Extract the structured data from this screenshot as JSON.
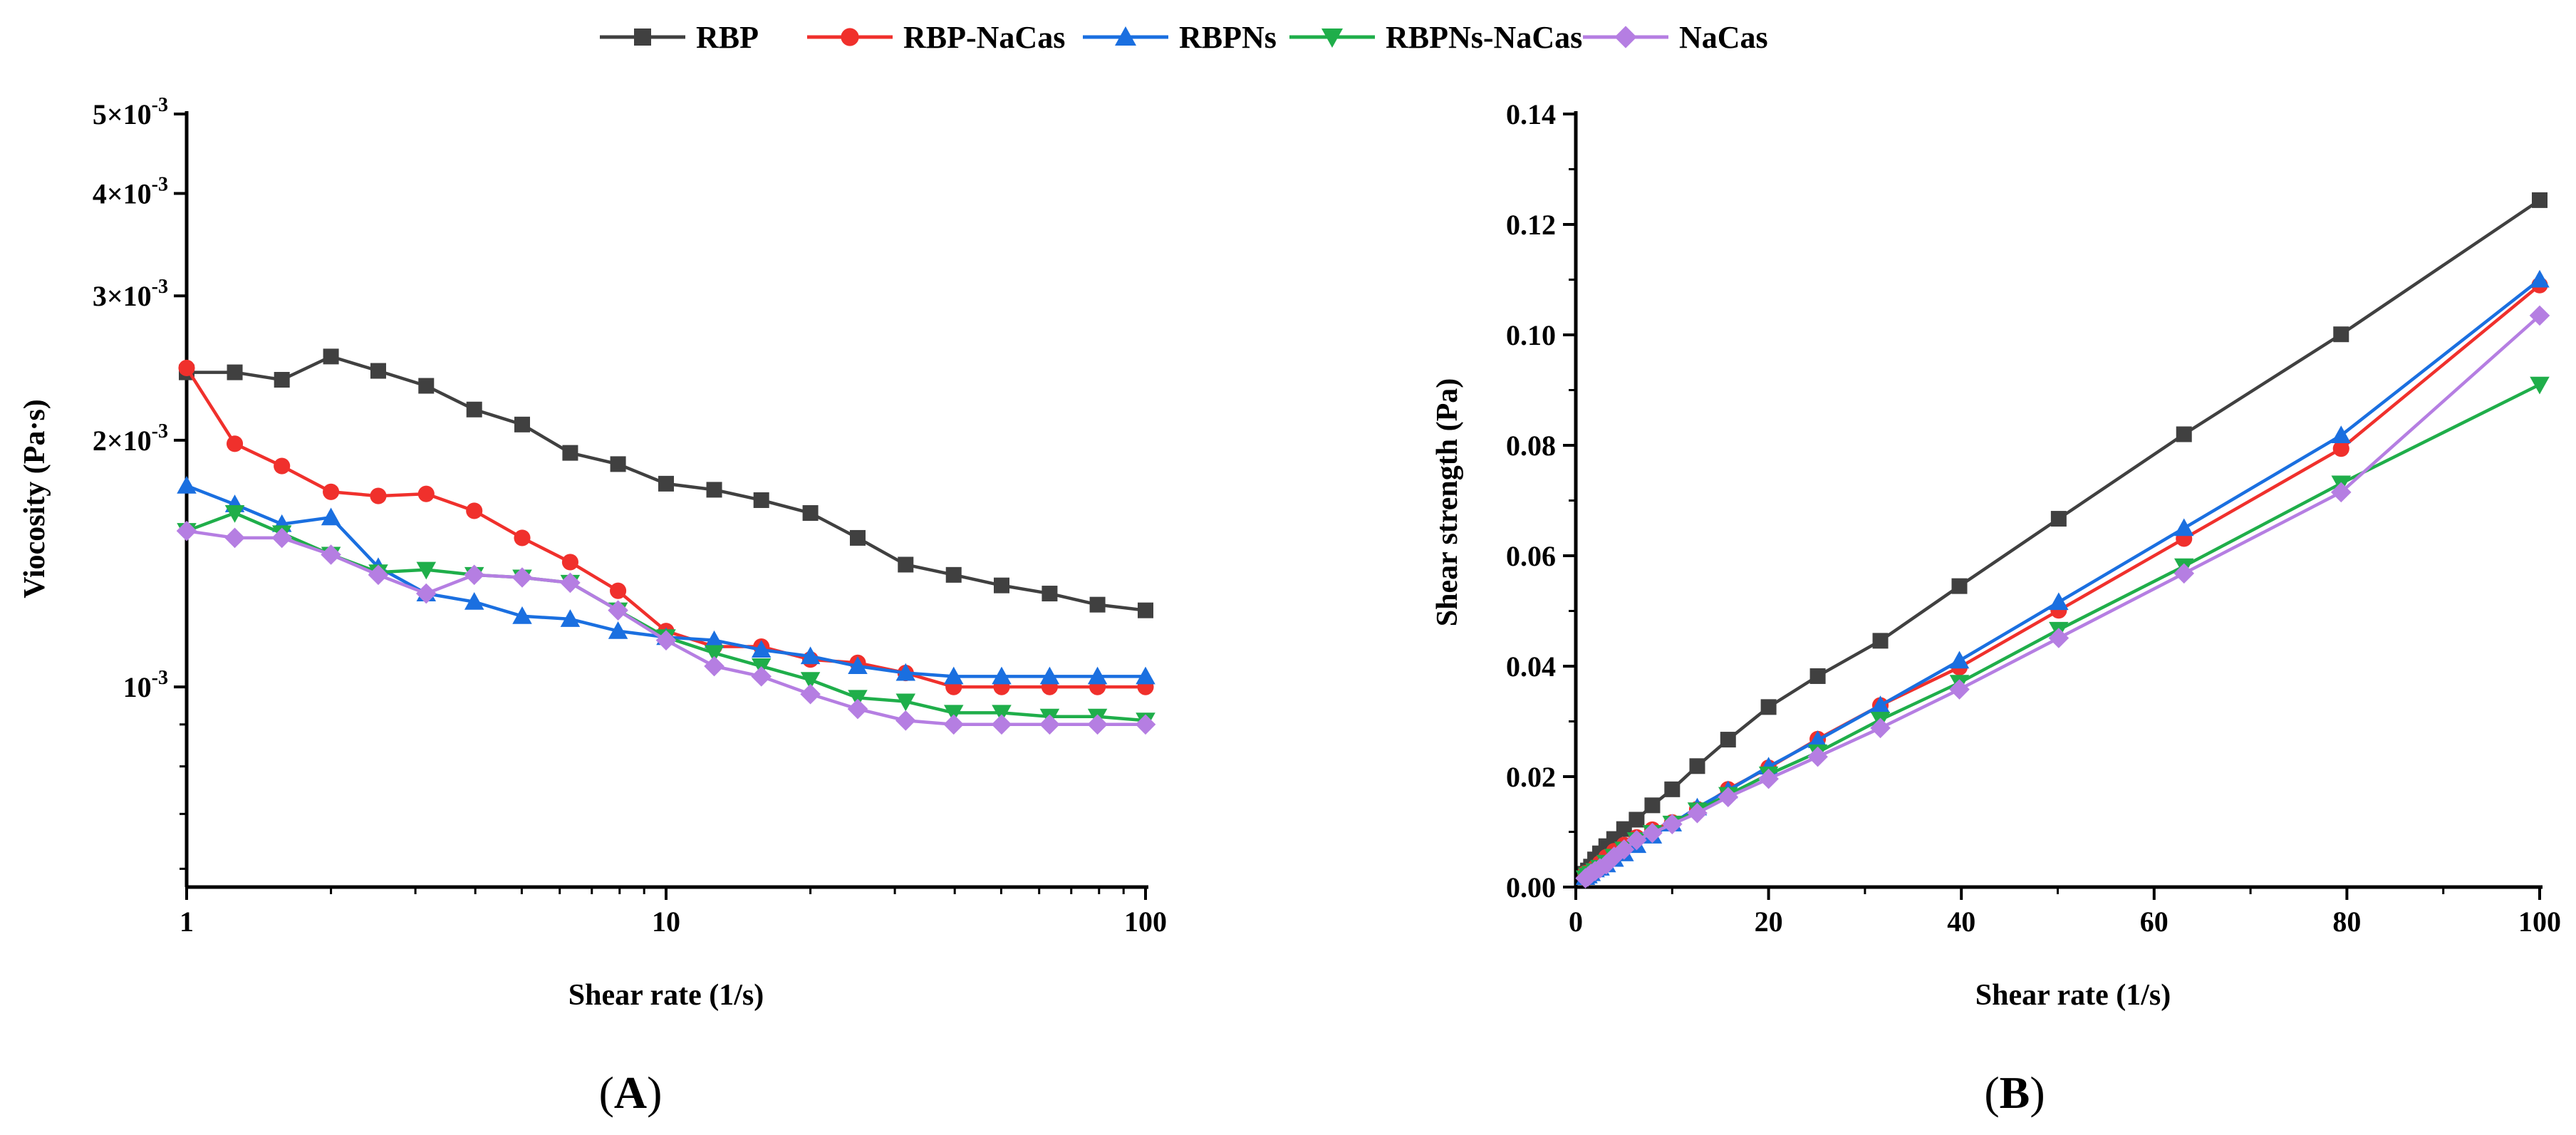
{
  "legend": [
    {
      "name": "RBP",
      "color": "#404040",
      "marker": "square"
    },
    {
      "name": "RBP-NaCas",
      "color": "#f0302c",
      "marker": "circle"
    },
    {
      "name": "RBPNs",
      "color": "#1a6fe0",
      "marker": "triangle-up"
    },
    {
      "name": "RBPNs-NaCas",
      "color": "#1fae4a",
      "marker": "triangle-down"
    },
    {
      "name": "NaCas",
      "color": "#b57ee2",
      "marker": "diamond"
    }
  ],
  "panels": {
    "a": {
      "label_open": "(",
      "label_letter": "A",
      "label_close": ")"
    },
    "b": {
      "label_open": "(",
      "label_letter": "B",
      "label_close": ")"
    }
  },
  "chart_data": [
    {
      "type": "line",
      "panel": "A",
      "xlabel": "Shear rate (1/s)",
      "ylabel": "Viocosity (Pa·s)",
      "xscale": "log",
      "yscale": "log",
      "xlim": [
        1,
        100
      ],
      "ylim": [
        0.00057,
        0.005
      ],
      "xticks": [
        1,
        10,
        100
      ],
      "xtick_labels": [
        "1",
        "10",
        "100"
      ],
      "yticks": [
        0.001,
        0.002,
        0.003,
        0.004,
        0.005
      ],
      "ytick_labels": [
        {
          "mant": "10",
          "exp": "-3"
        },
        {
          "mant": "2×10",
          "exp": "-3"
        },
        {
          "mant": "3×10",
          "exp": "-3"
        },
        {
          "mant": "4×10",
          "exp": "-3"
        },
        {
          "mant": "5×10",
          "exp": "-3"
        }
      ],
      "x": [
        1,
        1.26,
        1.58,
        2,
        2.51,
        3.16,
        3.98,
        5.01,
        6.31,
        7.94,
        10,
        12.6,
        15.8,
        20,
        25.1,
        31.6,
        39.8,
        50.1,
        63.1,
        79.4,
        100
      ],
      "series": [
        {
          "name": "RBP",
          "values": [
            0.00242,
            0.00242,
            0.00237,
            0.00253,
            0.00243,
            0.00233,
            0.00218,
            0.00209,
            0.00193,
            0.00187,
            0.00177,
            0.00174,
            0.00169,
            0.00163,
            0.00152,
            0.00141,
            0.00137,
            0.00133,
            0.0013,
            0.00126,
            0.00124
          ]
        },
        {
          "name": "RBP-NaCas",
          "values": [
            0.00245,
            0.00198,
            0.00186,
            0.00173,
            0.00171,
            0.00172,
            0.00164,
            0.00152,
            0.00142,
            0.00131,
            0.00117,
            0.00112,
            0.00112,
            0.00108,
            0.00107,
            0.00104,
            0.001,
            0.001,
            0.001,
            0.001,
            0.001
          ]
        },
        {
          "name": "RBPNs",
          "values": [
            0.00176,
            0.00167,
            0.00158,
            0.00161,
            0.0014,
            0.0013,
            0.00127,
            0.00122,
            0.00121,
            0.00117,
            0.00115,
            0.00114,
            0.00111,
            0.00109,
            0.00106,
            0.00104,
            0.00103,
            0.00103,
            0.00103,
            0.00103,
            0.00103
          ]
        },
        {
          "name": "RBPNs-NaCas",
          "values": [
            0.00155,
            0.00163,
            0.00154,
            0.00145,
            0.00138,
            0.00139,
            0.00137,
            0.00136,
            0.00134,
            0.00124,
            0.00115,
            0.0011,
            0.00106,
            0.00102,
            0.00097,
            0.00096,
            0.00093,
            0.00093,
            0.00092,
            0.00092,
            0.00091
          ]
        },
        {
          "name": "NaCas",
          "values": [
            0.00155,
            0.00152,
            0.00152,
            0.00145,
            0.00137,
            0.0013,
            0.00137,
            0.00136,
            0.00134,
            0.00124,
            0.00114,
            0.00106,
            0.00103,
            0.00098,
            0.00094,
            0.00091,
            0.0009,
            0.0009,
            0.0009,
            0.0009,
            0.0009
          ]
        }
      ]
    },
    {
      "type": "line",
      "panel": "B",
      "xlabel": "Shear rate (1/s)",
      "ylabel": "Shear strength (Pa)",
      "xscale": "linear",
      "yscale": "linear",
      "xlim": [
        0,
        100
      ],
      "ylim": [
        0,
        0.14
      ],
      "xticks": [
        0,
        20,
        40,
        60,
        80,
        100
      ],
      "xtick_labels": [
        "0",
        "20",
        "40",
        "60",
        "80",
        "100"
      ],
      "yticks": [
        0,
        0.02,
        0.04,
        0.06,
        0.08,
        0.1,
        0.12,
        0.14
      ],
      "ytick_labels": [
        "0.00",
        "0.02",
        "0.04",
        "0.06",
        "0.08",
        "0.10",
        "0.12",
        "0.14"
      ],
      "x": [
        1,
        1.26,
        1.58,
        2,
        2.51,
        3.16,
        3.98,
        5.01,
        6.31,
        7.94,
        10,
        12.6,
        15.8,
        20,
        25.1,
        31.6,
        39.8,
        50.1,
        63.1,
        79.4,
        100
      ],
      "series": [
        {
          "name": "RBP",
          "values": [
            0.0024,
            0.003,
            0.0037,
            0.005,
            0.0061,
            0.0074,
            0.0087,
            0.0105,
            0.0122,
            0.0148,
            0.0177,
            0.0219,
            0.0267,
            0.0326,
            0.0382,
            0.0446,
            0.0545,
            0.0667,
            0.082,
            0.1001,
            0.1244
          ]
        },
        {
          "name": "RBP-NaCas",
          "values": [
            0.0025,
            0.0025,
            0.0029,
            0.0035,
            0.0043,
            0.0054,
            0.0065,
            0.0076,
            0.009,
            0.0104,
            0.0117,
            0.0141,
            0.0177,
            0.0216,
            0.0268,
            0.0329,
            0.0398,
            0.0501,
            0.0631,
            0.0794,
            0.109
          ]
        },
        {
          "name": "RBPNs",
          "values": [
            0.0018,
            0.0021,
            0.0025,
            0.0032,
            0.0035,
            0.0041,
            0.0051,
            0.0061,
            0.0076,
            0.0093,
            0.0115,
            0.0144,
            0.0175,
            0.0218,
            0.0266,
            0.0329,
            0.041,
            0.0516,
            0.065,
            0.0818,
            0.11
          ]
        },
        {
          "name": "RBPNs-NaCas",
          "values": [
            0.0016,
            0.0021,
            0.0024,
            0.0029,
            0.0035,
            0.0044,
            0.0055,
            0.0068,
            0.0085,
            0.0098,
            0.0115,
            0.0139,
            0.0167,
            0.0204,
            0.0244,
            0.0303,
            0.037,
            0.0466,
            0.0581,
            0.0731,
            0.091
          ]
        },
        {
          "name": "NaCas",
          "values": [
            0.0016,
            0.0019,
            0.0024,
            0.0029,
            0.0034,
            0.0041,
            0.0055,
            0.0068,
            0.0085,
            0.0098,
            0.0114,
            0.0134,
            0.0163,
            0.0196,
            0.0236,
            0.0288,
            0.0358,
            0.0451,
            0.0568,
            0.0715,
            0.1035
          ]
        }
      ]
    }
  ]
}
